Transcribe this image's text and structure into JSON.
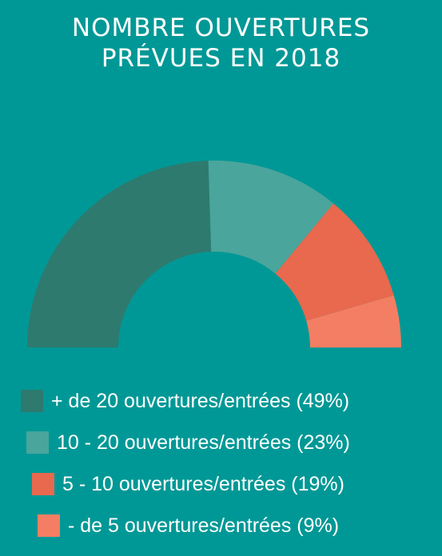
{
  "title_line1": "NOMBRE OUVERTURES",
  "title_line2": "PRÉVUES EN 2018",
  "chart_data": {
    "type": "pie",
    "variant": "half-donut",
    "title": "NOMBRE OUVERTURES PRÉVUES EN 2018",
    "categories": [
      "+ de 20 ouvertures/entrées",
      "10 - 20 ouvertures/entrées",
      "5 - 10 ouvertures/entrées",
      "- de 5 ouvertures/entrées"
    ],
    "values": [
      49,
      23,
      19,
      9
    ],
    "unit": "%",
    "colors": [
      "#2e7a6f",
      "#4aa59c",
      "#e8694e",
      "#f47e63"
    ],
    "legend_position": "bottom"
  },
  "legend": [
    {
      "label": "+ de 20 ouvertures/entrées (49%)",
      "color": "#2e7a6f"
    },
    {
      "label": "10 - 20 ouvertures/entrées (23%)",
      "color": "#4aa59c"
    },
    {
      "label": "5 - 10 ouvertures/entrées (19%)",
      "color": "#e8694e"
    },
    {
      "label": "- de 5 ouvertures/entrées (9%)",
      "color": "#f47e63"
    }
  ]
}
